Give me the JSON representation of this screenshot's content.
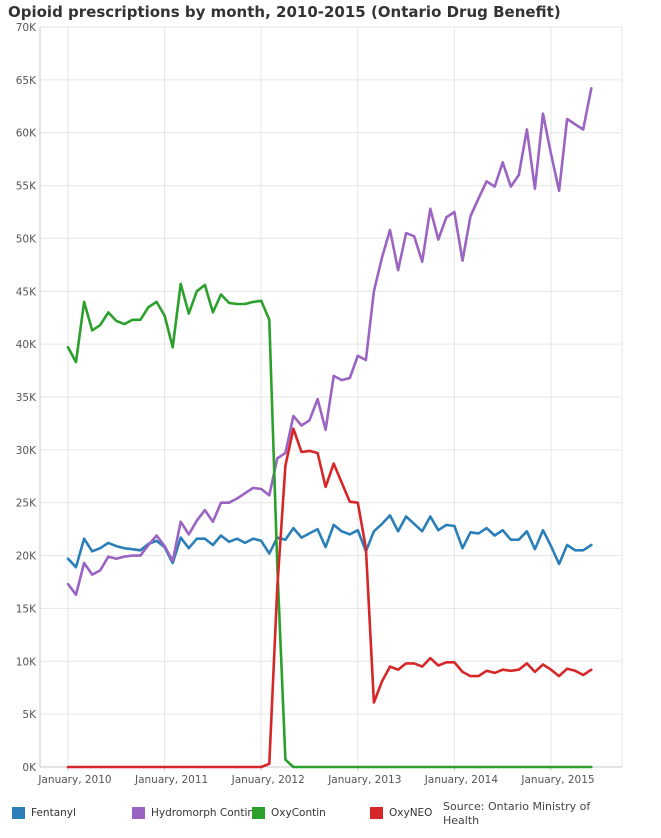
{
  "title": "Opioid prescriptions by month, 2010-2015 (Ontario Drug Benefit)",
  "source": "Source: Ontario Ministry of Health",
  "colors": {
    "Fentanyl": "#2a7fb8",
    "Hydromorph Contin": "#9b64c2",
    "OxyContin": "#2ca02c",
    "OxyNEO": "#d62728",
    "grid": "#e6e6e6",
    "axis": "#c8c8c8"
  },
  "chart_data": {
    "type": "line",
    "title": "Opioid prescriptions by month, 2010-2015 (Ontario Drug Benefit)",
    "xlabel": "",
    "ylabel": "",
    "ylim": [
      0,
      70000
    ],
    "grid": true,
    "legend_placement": "bottom",
    "x_start": "2010-01",
    "x_tick_labels": [
      "January, 2010",
      "January, 2011",
      "January, 2012",
      "January, 2013",
      "January, 2014",
      "January, 2015"
    ],
    "y_tick_labels": [
      "0K",
      "5K",
      "10K",
      "15K",
      "20K",
      "25K",
      "30K",
      "35K",
      "40K",
      "45K",
      "50K",
      "55K",
      "60K",
      "65K",
      "70K"
    ],
    "series": [
      {
        "name": "Fentanyl",
        "values": [
          19700,
          18900,
          21600,
          20400,
          20700,
          21200,
          20900,
          20700,
          20600,
          20500,
          21100,
          21400,
          20800,
          19300,
          21700,
          20700,
          21600,
          21600,
          21000,
          21900,
          21300,
          21600,
          21200,
          21600,
          21400,
          20200,
          21700,
          21500,
          22600,
          21700,
          22100,
          22500,
          20800,
          22900,
          22300,
          22000,
          22400,
          20400,
          22300,
          23000,
          23800,
          22300,
          23700,
          23000,
          22300,
          23700,
          22400,
          22900,
          22800,
          20700,
          22200,
          22100,
          22600,
          21900,
          22400,
          21500,
          21500,
          22300,
          20600,
          22400,
          20900,
          19200,
          21000,
          20500,
          20500,
          21000
        ]
      },
      {
        "name": "Hydromorph Contin",
        "values": [
          17300,
          16300,
          19300,
          18200,
          18600,
          19900,
          19700,
          19900,
          20000,
          20000,
          21000,
          21900,
          20900,
          19500,
          23200,
          22000,
          23300,
          24300,
          23200,
          25000,
          25000,
          25400,
          25900,
          26400,
          26300,
          25700,
          29200,
          29700,
          33200,
          32300,
          32800,
          34800,
          31900,
          37000,
          36600,
          36800,
          38900,
          38500,
          45000,
          48200,
          50800,
          47000,
          50500,
          50200,
          47800,
          52800,
          49900,
          52000,
          52500,
          47900,
          52100,
          53800,
          55400,
          54900,
          57200,
          54900,
          56000,
          60300,
          54700,
          61800,
          58000,
          54500,
          61300,
          60800,
          60300,
          64200
        ]
      },
      {
        "name": "OxyContin",
        "values": [
          39700,
          38300,
          44000,
          41300,
          41800,
          43000,
          42200,
          41900,
          42300,
          42300,
          43500,
          44000,
          42700,
          39700,
          45700,
          42900,
          45000,
          45600,
          43000,
          44700,
          43900,
          43800,
          43800,
          44000,
          44100,
          42300,
          19000,
          700,
          0,
          0,
          0,
          0,
          0,
          0,
          0,
          0,
          0,
          0,
          0,
          0,
          0,
          0,
          0,
          0,
          0,
          0,
          0,
          0,
          0,
          0,
          0,
          0,
          0,
          0,
          0,
          0,
          0,
          0,
          0,
          0,
          0,
          0,
          0,
          0,
          0,
          0
        ]
      },
      {
        "name": "OxyNEO",
        "values": [
          0,
          0,
          0,
          0,
          0,
          0,
          0,
          0,
          0,
          0,
          0,
          0,
          0,
          0,
          0,
          0,
          0,
          0,
          0,
          0,
          0,
          0,
          0,
          0,
          0,
          300,
          17000,
          28500,
          32000,
          29800,
          29900,
          29700,
          26500,
          28700,
          26900,
          25100,
          25000,
          20700,
          6100,
          8100,
          9500,
          9200,
          9800,
          9800,
          9500,
          10300,
          9600,
          9900,
          9900,
          9000,
          8600,
          8600,
          9100,
          8900,
          9200,
          9100,
          9200,
          9800,
          9000,
          9700,
          9200,
          8600,
          9300,
          9100,
          8700,
          9200
        ]
      }
    ]
  }
}
